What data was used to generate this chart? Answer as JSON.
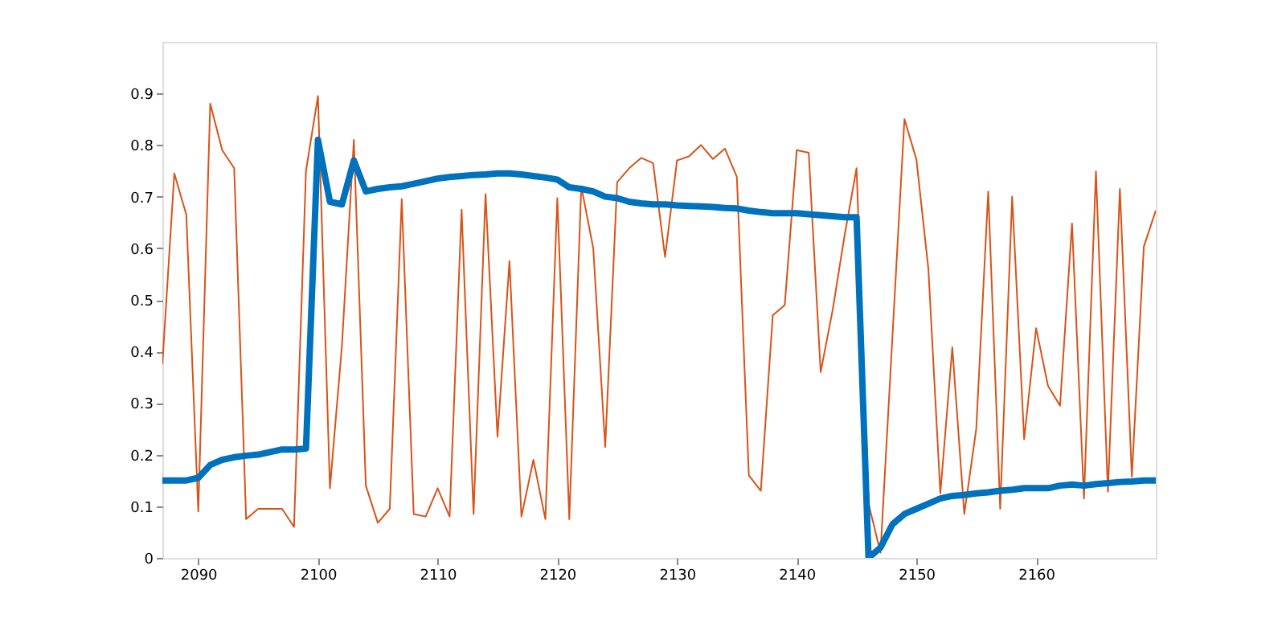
{
  "chart_data": {
    "type": "line",
    "xlim": [
      2087,
      2170
    ],
    "ylim": [
      0,
      1
    ],
    "xticks": [
      2090,
      2100,
      2110,
      2120,
      2130,
      2140,
      2150,
      2160
    ],
    "yticks": [
      0,
      0.1,
      0.2,
      0.3,
      0.4,
      0.5,
      0.6,
      0.7,
      0.8,
      0.9
    ],
    "grid": false,
    "x": [
      2087,
      2088,
      2089,
      2090,
      2091,
      2092,
      2093,
      2094,
      2095,
      2096,
      2097,
      2098,
      2099,
      2100,
      2101,
      2102,
      2103,
      2104,
      2105,
      2106,
      2107,
      2108,
      2109,
      2110,
      2111,
      2112,
      2113,
      2114,
      2115,
      2116,
      2117,
      2118,
      2119,
      2120,
      2121,
      2122,
      2123,
      2124,
      2125,
      2126,
      2127,
      2128,
      2129,
      2130,
      2131,
      2132,
      2133,
      2134,
      2135,
      2136,
      2137,
      2138,
      2139,
      2140,
      2141,
      2142,
      2143,
      2144,
      2145,
      2146,
      2147,
      2148,
      2149,
      2150,
      2151,
      2152,
      2153,
      2154,
      2155,
      2156,
      2157,
      2158,
      2159,
      2160,
      2161,
      2162,
      2163,
      2164,
      2165,
      2166,
      2167,
      2168,
      2169,
      2170
    ],
    "series": [
      {
        "color": "#d95319",
        "values": [
          0.375,
          0.745,
          0.665,
          0.09,
          0.88,
          0.79,
          0.755,
          0.075,
          0.095,
          0.095,
          0.095,
          0.06,
          0.75,
          0.895,
          0.135,
          0.41,
          0.81,
          0.14,
          0.068,
          0.095,
          0.695,
          0.085,
          0.08,
          0.135,
          0.08,
          0.675,
          0.085,
          0.705,
          0.235,
          0.575,
          0.08,
          0.19,
          0.075,
          0.697,
          0.075,
          0.72,
          0.6,
          0.215,
          0.728,
          0.755,
          0.775,
          0.765,
          0.583,
          0.77,
          0.778,
          0.8,
          0.773,
          0.793,
          0.738,
          0.16,
          0.13,
          0.47,
          0.49,
          0.79,
          0.785,
          0.36,
          0.48,
          0.625,
          0.755,
          0.105,
          0.01,
          0.43,
          0.85,
          0.772,
          0.56,
          0.125,
          0.408,
          0.085,
          0.25,
          0.71,
          0.095,
          0.7,
          0.23,
          0.445,
          0.333,
          0.295,
          0.648,
          0.115,
          0.749,
          0.128,
          0.715,
          0.157,
          0.603,
          0.673
        ]
      },
      {
        "color": "#0072bd",
        "values": [
          0.15,
          0.15,
          0.15,
          0.155,
          0.18,
          0.19,
          0.195,
          0.198,
          0.2,
          0.205,
          0.21,
          0.21,
          0.212,
          0.81,
          0.69,
          0.685,
          0.77,
          0.71,
          0.715,
          0.718,
          0.72,
          0.725,
          0.73,
          0.735,
          0.738,
          0.74,
          0.742,
          0.743,
          0.745,
          0.745,
          0.743,
          0.74,
          0.737,
          0.733,
          0.718,
          0.715,
          0.71,
          0.7,
          0.697,
          0.69,
          0.687,
          0.685,
          0.685,
          0.683,
          0.682,
          0.681,
          0.68,
          0.678,
          0.677,
          0.673,
          0.67,
          0.668,
          0.668,
          0.668,
          0.666,
          0.664,
          0.662,
          0.66,
          0.66,
          0,
          0.02,
          0.065,
          0.085,
          0.095,
          0.105,
          0.115,
          0.12,
          0.122,
          0.125,
          0.127,
          0.13,
          0.132,
          0.135,
          0.135,
          0.135,
          0.14,
          0.142,
          0.14,
          0.143,
          0.145,
          0.147,
          0.148,
          0.15,
          0.15
        ]
      }
    ]
  }
}
